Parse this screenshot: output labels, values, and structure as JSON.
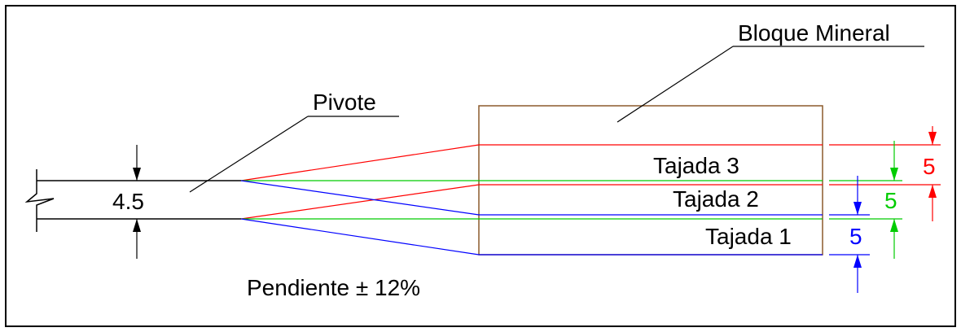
{
  "labels": {
    "bloque": "Bloque Mineral",
    "pivote": "Pivote",
    "pendiente": "Pendiente ± 12%",
    "tajada3": "Tajada 3",
    "tajada2": "Tajada 2",
    "tajada1": "Tajada 1"
  },
  "dimensions": {
    "gallery_height": "4.5",
    "slice3": "5",
    "slice2": "5",
    "slice1": "5"
  },
  "colors": {
    "outline": "#000000",
    "block": "#8b5a2b",
    "slice3": "#ff0000",
    "slice2": "#00cc00",
    "slice1": "#0000ff"
  }
}
